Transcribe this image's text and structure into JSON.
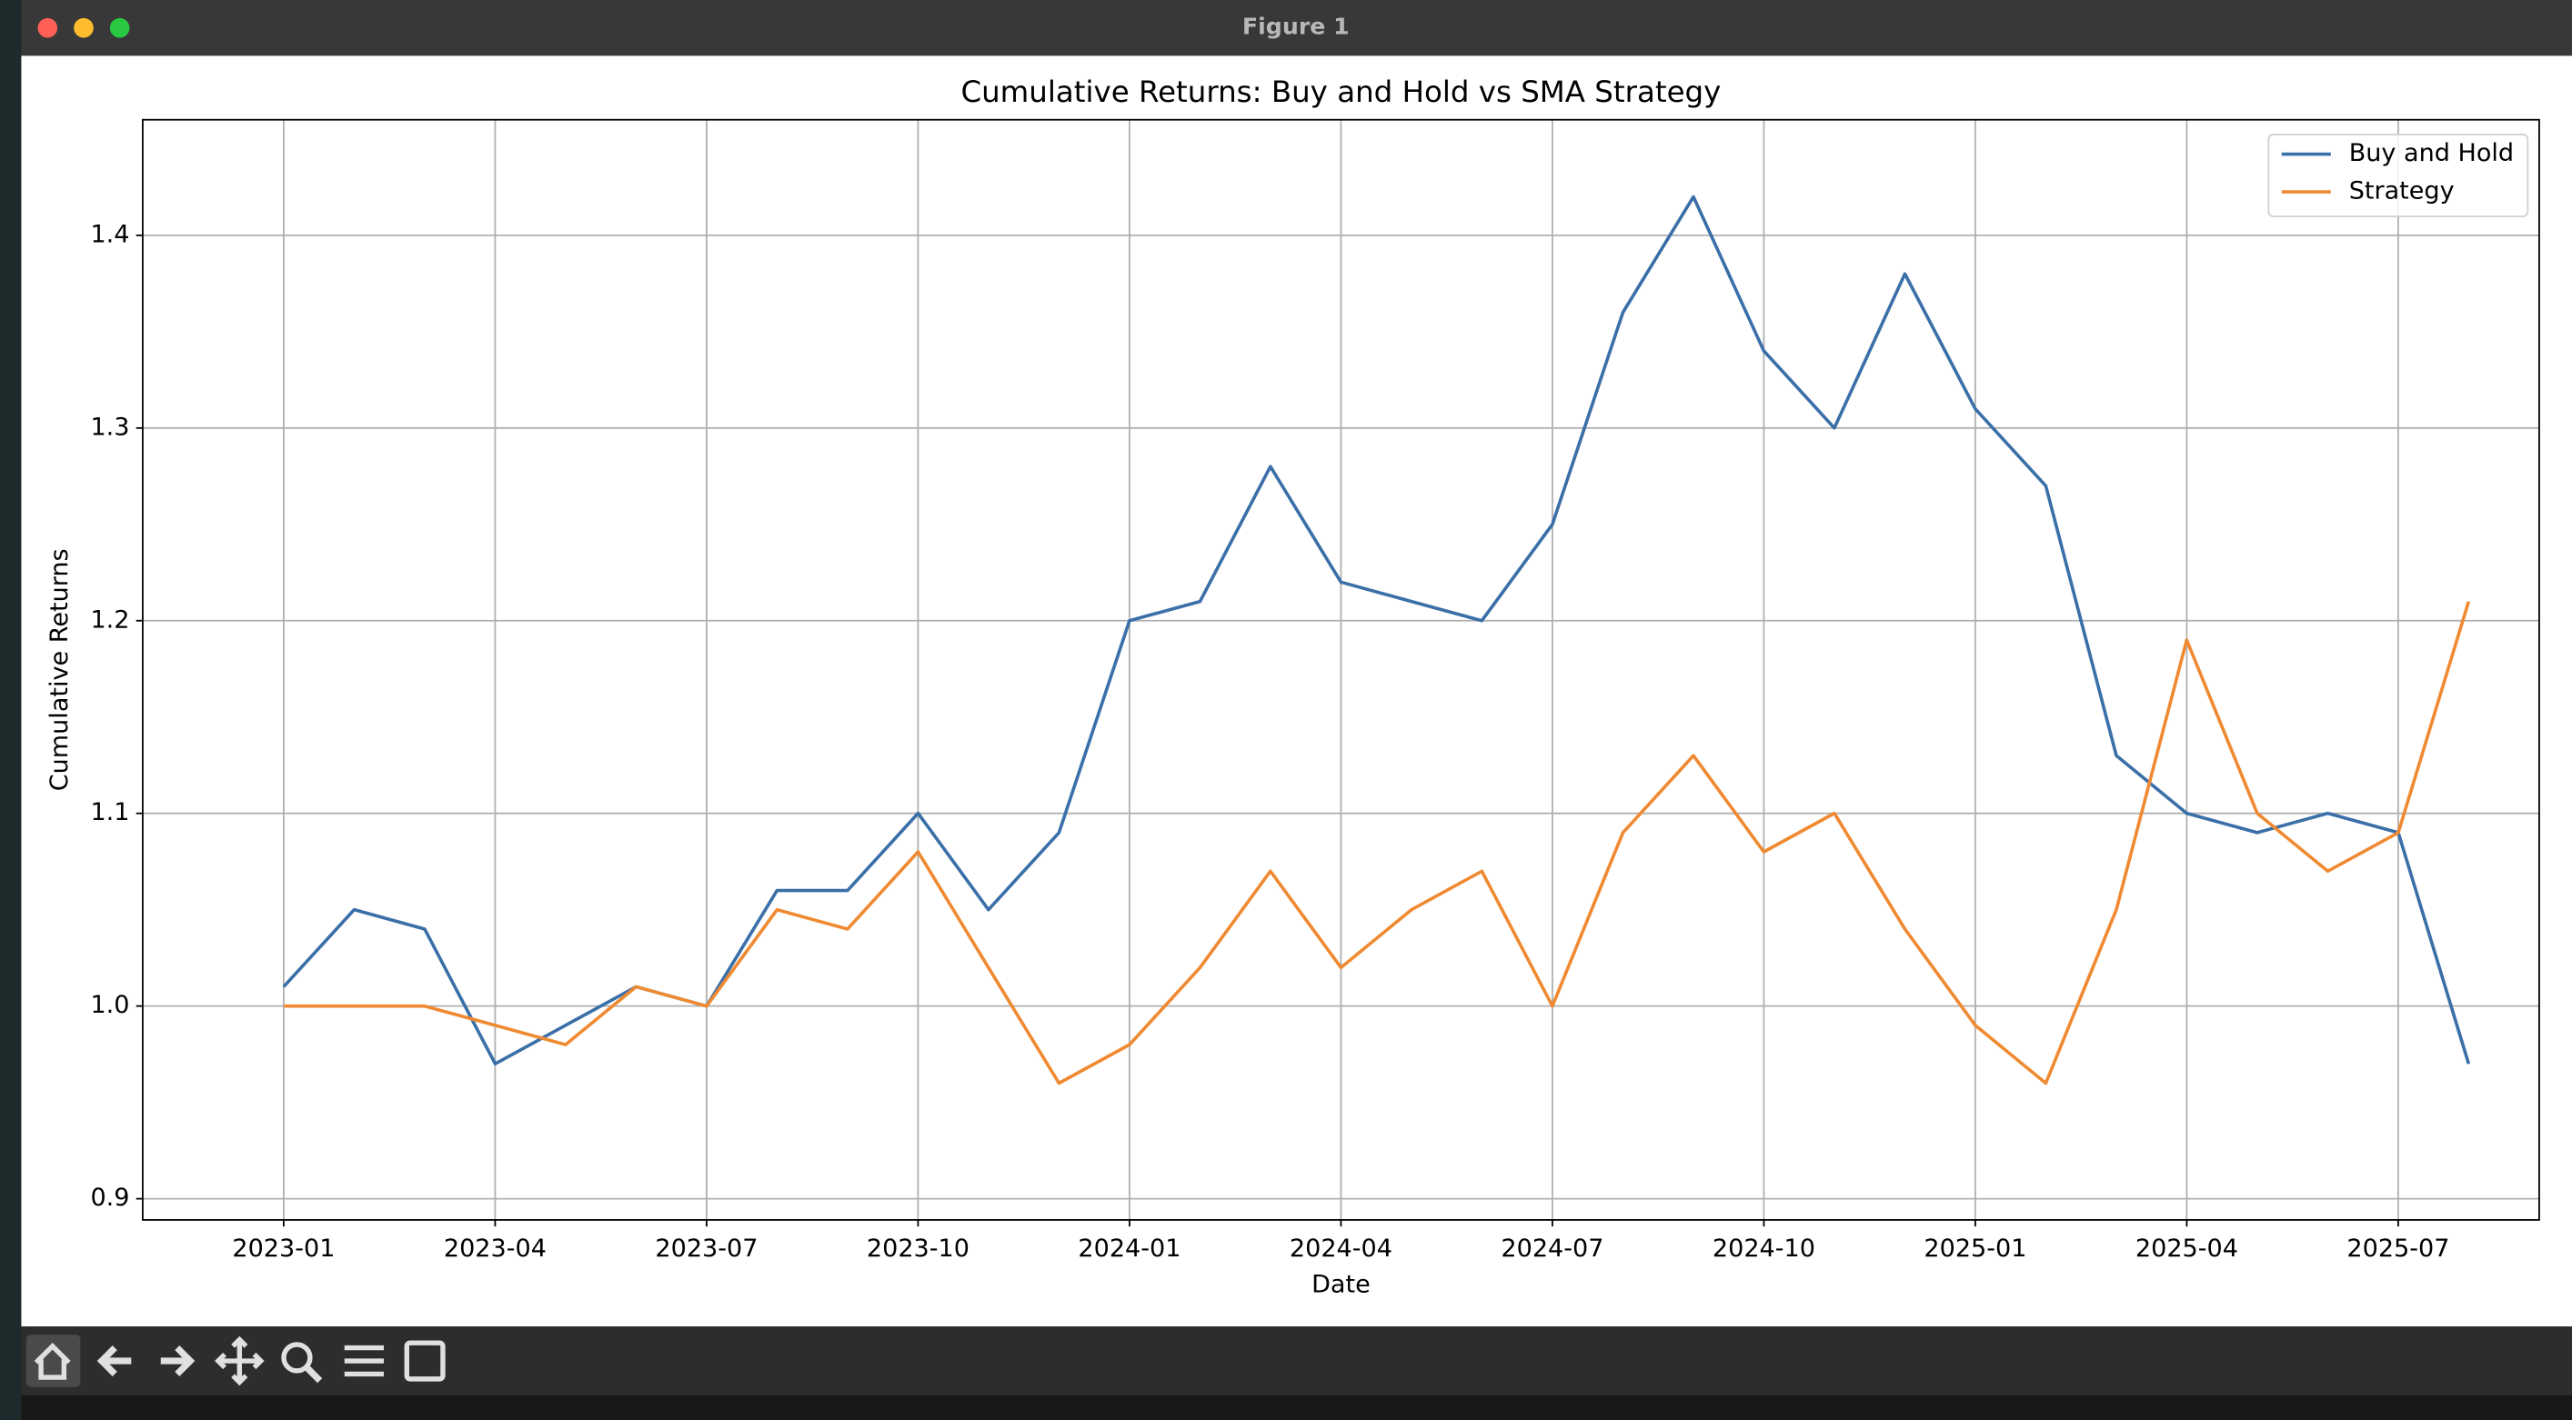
{
  "window": {
    "title": "Figure 1"
  },
  "chart_data": {
    "type": "line",
    "title": "Cumulative Returns: Buy and Hold vs SMA Strategy",
    "xlabel": "Date",
    "ylabel": "Cumulative Returns",
    "x": [
      "2023-01",
      "2023-02",
      "2023-03",
      "2023-04",
      "2023-05",
      "2023-06",
      "2023-07",
      "2023-08",
      "2023-09",
      "2023-10",
      "2023-11",
      "2023-12",
      "2024-01",
      "2024-02",
      "2024-03",
      "2024-04",
      "2024-05",
      "2024-06",
      "2024-07",
      "2024-08",
      "2024-09",
      "2024-10",
      "2024-11",
      "2024-12",
      "2025-01",
      "2025-02",
      "2025-03",
      "2025-04",
      "2025-05",
      "2025-06",
      "2025-07",
      "2025-08"
    ],
    "series": [
      {
        "name": "Buy and Hold",
        "color": "#3a6fa8",
        "values": [
          1.01,
          1.05,
          1.04,
          0.97,
          0.99,
          1.01,
          1.0,
          1.06,
          1.06,
          1.1,
          1.05,
          1.09,
          1.2,
          1.21,
          1.28,
          1.22,
          1.21,
          1.2,
          1.25,
          1.36,
          1.42,
          1.34,
          1.3,
          1.38,
          1.31,
          1.27,
          1.13,
          1.1,
          1.09,
          1.1,
          1.09,
          0.97
        ]
      },
      {
        "name": "Strategy",
        "color": "#ef8a32",
        "values": [
          1.0,
          1.0,
          1.0,
          0.99,
          0.98,
          1.01,
          1.0,
          1.05,
          1.04,
          1.08,
          1.02,
          0.96,
          0.98,
          1.02,
          1.07,
          1.02,
          1.05,
          1.07,
          1.0,
          1.09,
          1.13,
          1.08,
          1.1,
          1.04,
          0.99,
          0.96,
          1.05,
          1.19,
          1.1,
          1.07,
          1.09,
          1.21
        ]
      }
    ],
    "xlim": [
      "2022-11",
      "2025-09"
    ],
    "xticks": [
      "2023-01",
      "2023-04",
      "2023-07",
      "2023-10",
      "2024-01",
      "2024-04",
      "2024-07",
      "2024-10",
      "2025-01",
      "2025-04",
      "2025-07"
    ],
    "ylim": [
      0.889,
      1.46
    ],
    "yticks": [
      0.9,
      {
        "value": 1,
        "label": "1.0"
      },
      1.1,
      1.2,
      1.3,
      1.4
    ],
    "grid": true,
    "legend": "upper right"
  }
}
